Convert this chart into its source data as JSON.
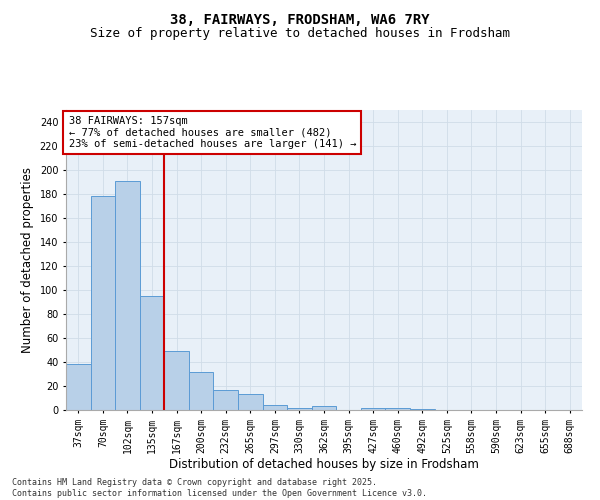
{
  "title": "38, FAIRWAYS, FRODSHAM, WA6 7RY",
  "subtitle": "Size of property relative to detached houses in Frodsham",
  "xlabel": "Distribution of detached houses by size in Frodsham",
  "ylabel": "Number of detached properties",
  "bar_values": [
    38,
    178,
    191,
    95,
    49,
    32,
    17,
    13,
    4,
    2,
    3,
    0,
    2,
    2,
    1,
    0,
    0,
    0,
    0,
    0,
    0
  ],
  "bar_labels": [
    "37sqm",
    "70sqm",
    "102sqm",
    "135sqm",
    "167sqm",
    "200sqm",
    "232sqm",
    "265sqm",
    "297sqm",
    "330sqm",
    "362sqm",
    "395sqm",
    "427sqm",
    "460sqm",
    "492sqm",
    "525sqm",
    "558sqm",
    "590sqm",
    "623sqm",
    "655sqm",
    "688sqm"
  ],
  "bar_color": "#b8d0e8",
  "bar_edge_color": "#5b9bd5",
  "grid_color": "#d0dce8",
  "background_color": "#e8f0f8",
  "vline_x_index": 4,
  "vline_color": "#cc0000",
  "annotation_text": "38 FAIRWAYS: 157sqm\n← 77% of detached houses are smaller (482)\n23% of semi-detached houses are larger (141) →",
  "annotation_box_color": "#ffffff",
  "annotation_edge_color": "#cc0000",
  "ylim": [
    0,
    250
  ],
  "yticks": [
    0,
    20,
    40,
    60,
    80,
    100,
    120,
    140,
    160,
    180,
    200,
    220,
    240
  ],
  "footer": "Contains HM Land Registry data © Crown copyright and database right 2025.\nContains public sector information licensed under the Open Government Licence v3.0.",
  "title_fontsize": 10,
  "subtitle_fontsize": 9,
  "tick_fontsize": 7,
  "label_fontsize": 8.5,
  "annotation_fontsize": 7.5,
  "footer_fontsize": 6
}
